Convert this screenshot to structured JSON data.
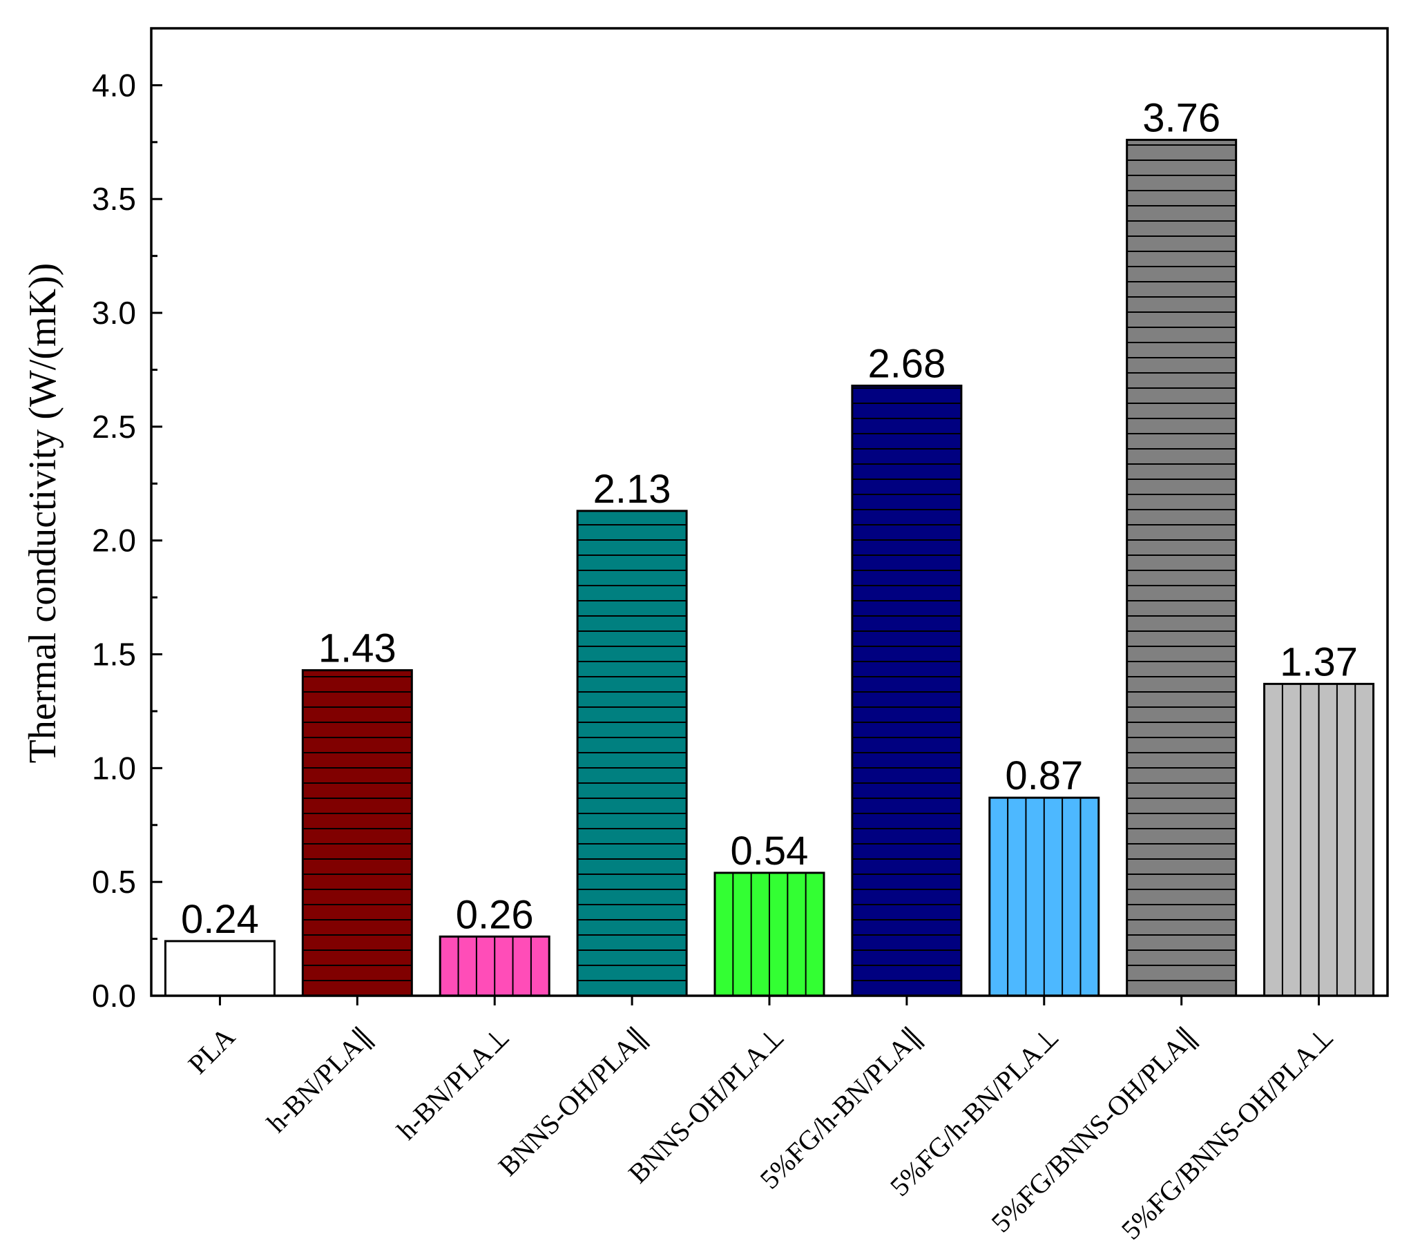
{
  "chart_data": {
    "type": "bar",
    "title": "",
    "xlabel": "",
    "ylabel": "Thermal conductivity (W/(mK))",
    "ylim": [
      0,
      4.25
    ],
    "yticks": [
      "0.0",
      "0.5",
      "1.0",
      "1.5",
      "2.0",
      "2.5",
      "3.0",
      "3.5",
      "4.0"
    ],
    "categories": [
      "PLA",
      "h-BN/PLA∥",
      "h-BN/PLA⊥",
      "BNNS-OH/PLA∥",
      "BNNS-OH/PLA⊥",
      "5%FG/h-BN/PLA∥",
      "5%FG/h-BN/PLA⊥",
      "5%FG/BNNS-OH/PLA∥",
      "5%FG/BNNS-OH/PLA⊥"
    ],
    "values": [
      0.24,
      1.43,
      0.26,
      2.13,
      0.54,
      2.68,
      0.87,
      3.76,
      1.37
    ],
    "value_labels": [
      "0.24",
      "1.43",
      "0.26",
      "2.13",
      "0.54",
      "2.68",
      "0.87",
      "3.76",
      "1.37"
    ],
    "colors": [
      "#FFFFFF",
      "#800000",
      "#FF4DB8",
      "#008080",
      "#33FF33",
      "#000080",
      "#4DB8FF",
      "#808080",
      "#C0C0C0"
    ],
    "patterns": [
      "none",
      "horizontal",
      "vertical",
      "horizontal",
      "vertical",
      "horizontal",
      "vertical",
      "horizontal",
      "vertical"
    ]
  }
}
